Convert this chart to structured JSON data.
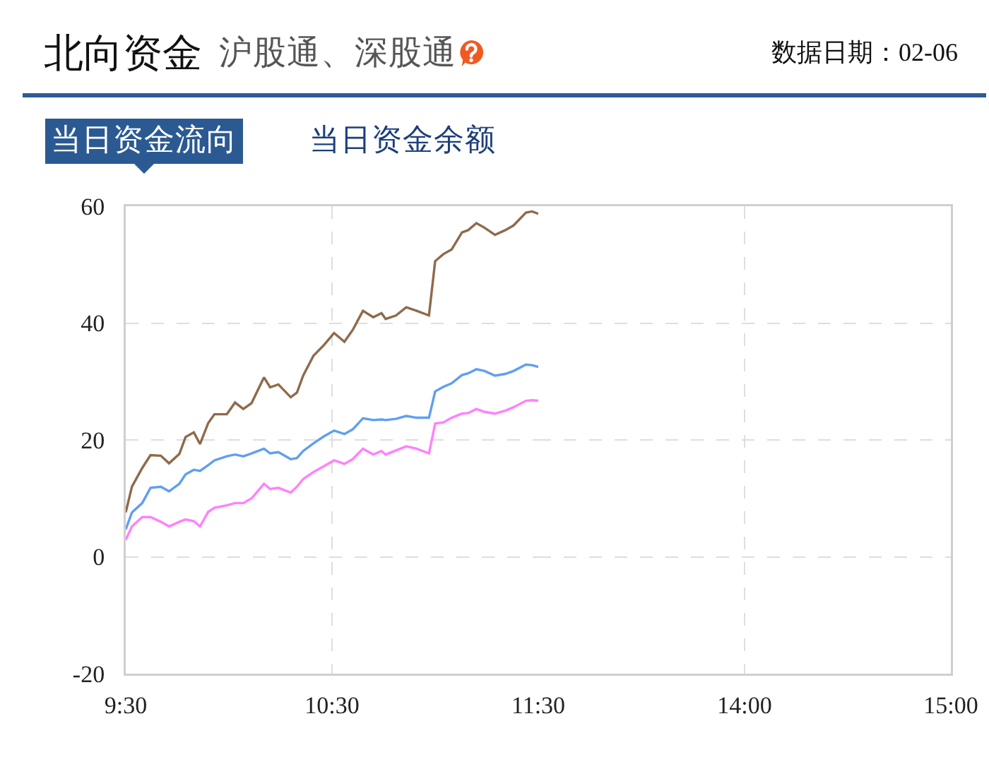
{
  "chart_data": [
    {
      "type": "line",
      "title": "北向资金",
      "subtitle": "沪股通、深股通",
      "annotations": [
        "数据日期：02-06",
        "当日资金流向",
        "当日资金余额"
      ],
      "x": [
        9.5,
        9.53,
        9.58,
        9.62,
        9.67,
        9.71,
        9.76,
        9.79,
        9.83,
        9.86,
        9.9,
        9.93,
        9.99,
        10.03,
        10.07,
        10.11,
        10.17,
        10.2,
        10.24,
        10.3,
        10.33,
        10.36,
        10.41,
        10.46,
        10.51,
        10.56,
        10.6,
        10.65,
        10.7,
        10.74,
        10.76,
        10.81,
        10.86,
        10.91,
        10.97,
        11.0,
        11.04,
        11.08,
        11.13,
        11.16,
        11.2,
        11.24,
        11.29,
        11.34,
        11.38,
        11.44,
        11.47,
        11.5
      ],
      "series": [
        {
          "color": "#8f6a4a",
          "values": [
            7.6,
            12.0,
            15.2,
            17.4,
            17.3,
            16.0,
            17.6,
            20.5,
            21.3,
            19.3,
            22.9,
            24.4,
            24.4,
            26.4,
            25.3,
            26.3,
            30.7,
            29.0,
            29.5,
            27.3,
            28.1,
            31.0,
            34.4,
            36.2,
            38.3,
            36.8,
            38.8,
            42.1,
            41.0,
            41.7,
            40.7,
            41.3,
            42.7,
            42.1,
            41.3,
            50.6,
            51.8,
            52.6,
            55.5,
            55.9,
            57.1,
            56.3,
            55.1,
            55.9,
            56.7,
            58.9,
            59.1,
            58.7
          ]
        },
        {
          "color": "#5f9ff0",
          "values": [
            4.7,
            7.6,
            9.2,
            11.8,
            12.0,
            11.2,
            12.5,
            14.1,
            14.9,
            14.7,
            15.7,
            16.5,
            17.2,
            17.5,
            17.2,
            17.7,
            18.5,
            17.7,
            17.9,
            16.7,
            16.9,
            18.1,
            19.4,
            20.6,
            21.6,
            21.0,
            21.8,
            23.7,
            23.4,
            23.5,
            23.4,
            23.6,
            24.1,
            23.8,
            23.8,
            28.3,
            29.1,
            29.7,
            31.1,
            31.4,
            32.1,
            31.8,
            31.0,
            31.3,
            31.8,
            32.9,
            32.8,
            32.5
          ]
        },
        {
          "color": "#ff80ff",
          "values": [
            2.9,
            5.2,
            6.8,
            6.8,
            6.0,
            5.2,
            6.0,
            6.4,
            6.1,
            5.2,
            7.7,
            8.4,
            8.8,
            9.2,
            9.2,
            10.0,
            12.5,
            11.6,
            11.8,
            11.0,
            12.0,
            13.3,
            14.5,
            15.5,
            16.5,
            15.9,
            16.7,
            18.5,
            17.5,
            18.1,
            17.5,
            18.2,
            18.9,
            18.5,
            17.7,
            22.8,
            23.0,
            23.8,
            24.5,
            24.6,
            25.3,
            24.8,
            24.5,
            25.0,
            25.6,
            26.7,
            26.8,
            26.7
          ]
        }
      ],
      "xlim": [
        9.5,
        11.5
      ],
      "xticks": [
        {
          "value": 9.5,
          "label": "9:30"
        },
        {
          "value": 10.5,
          "label": "10:30"
        },
        {
          "value": 11.5,
          "label": "11:30"
        }
      ],
      "ylim": [
        -20,
        60
      ],
      "yticks": [
        -20,
        0,
        20,
        40,
        60
      ],
      "grid": true,
      "line_style": "solid"
    },
    {
      "type": "line",
      "xlim": [
        13,
        15
      ],
      "xticks": [
        {
          "value": 14,
          "label": "14:00"
        },
        {
          "value": 15,
          "label": "15:00"
        }
      ],
      "ylim": [
        -20,
        60
      ],
      "yticks": [
        -20,
        0,
        20,
        40,
        60
      ],
      "grid": true,
      "tick_labels": "x"
    }
  ]
}
